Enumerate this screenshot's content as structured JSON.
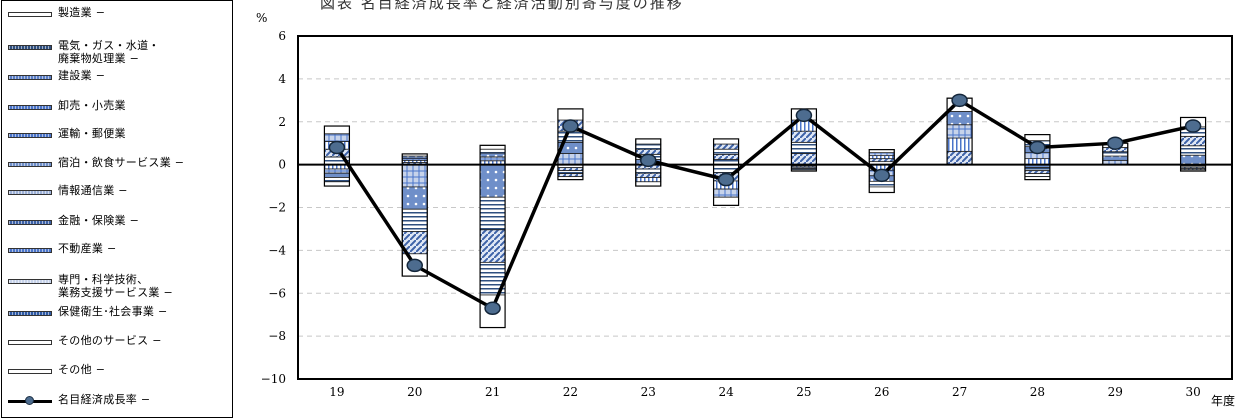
{
  "title": "図表  名目経済成長率と経済活動別寄与度の推移",
  "legend": [
    {
      "label": "製造業 −",
      "color": "#ffffff"
    },
    {
      "label": "電気・ガス・水道・\n廃棄物処理業 −",
      "color": "#2f4f7f"
    },
    {
      "label": "建設業      −",
      "color": "#5b7fc7"
    },
    {
      "label": "卸売・小売業",
      "color": "#4a74c9"
    },
    {
      "label": "運輸・郵便業",
      "color": "#4a74c9"
    },
    {
      "label": "宿泊・飲食サービス業 −",
      "color": "#6f8fc9"
    },
    {
      "label": "情報通信業 −",
      "color": "#9fb3d9"
    },
    {
      "label": "金融・保険業 −",
      "color": "#3d62a8"
    },
    {
      "label": "不動産業    −",
      "color": "#4a74c9"
    },
    {
      "label": "専門・科学技術、\n業務支援サービス業 −",
      "color": "#c7d3ea"
    },
    {
      "label": "保健衛生･社会事業 −",
      "color": "#2e5aa6"
    },
    {
      "label": "その他のサービス −",
      "color": "#ffffff"
    },
    {
      "label": "その他      −",
      "color": "#ffffff"
    },
    {
      "label": "名目経済成長率 −",
      "color": "#000000"
    }
  ],
  "chart_data": {
    "type": "bar",
    "stacked": true,
    "unit_label": "%",
    "x_unit_label": "年度",
    "categories": [
      "19",
      "20",
      "21",
      "22",
      "23",
      "24",
      "25",
      "26",
      "27",
      "28",
      "29",
      "30"
    ],
    "ylim": [
      -10,
      6
    ],
    "yticks": [
      6,
      4,
      2,
      0,
      -2,
      -4,
      -6,
      -8,
      -10
    ],
    "grid": true,
    "bar_totals": {
      "positive": [
        1.8,
        0.5,
        0.9,
        2.6,
        1.2,
        1.2,
        2.6,
        0.7,
        3.1,
        1.4,
        1.0,
        2.2
      ],
      "negative": [
        -1.0,
        -5.2,
        -7.6,
        -0.7,
        -1.0,
        -1.9,
        -0.3,
        -1.3,
        0.0,
        -0.7,
        0.0,
        -0.3
      ]
    },
    "series": [
      {
        "name": "名目経済成長率",
        "type": "line",
        "values": [
          0.8,
          -4.7,
          -6.7,
          1.8,
          0.2,
          -0.7,
          2.3,
          -0.5,
          3.0,
          0.8,
          1.0,
          1.8
        ]
      }
    ]
  }
}
